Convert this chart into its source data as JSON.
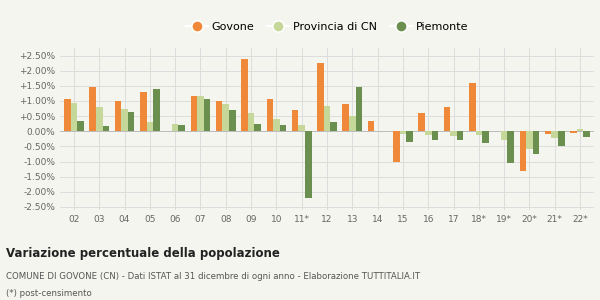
{
  "categories": [
    "02",
    "03",
    "04",
    "05",
    "06",
    "07",
    "08",
    "09",
    "10",
    "11*",
    "12",
    "13",
    "14",
    "15",
    "16",
    "17",
    "18*",
    "19*",
    "20*",
    "21*",
    "22*"
  ],
  "govone": [
    1.05,
    1.45,
    1.0,
    1.3,
    0.0,
    1.15,
    1.0,
    2.4,
    1.05,
    0.7,
    2.25,
    0.9,
    0.35,
    -1.0,
    0.6,
    0.8,
    1.6,
    0.0,
    -1.3,
    -0.1,
    -0.05
  ],
  "provincia_cn": [
    0.95,
    0.8,
    0.75,
    0.3,
    0.25,
    1.15,
    0.9,
    0.6,
    0.4,
    0.22,
    0.85,
    0.5,
    0.0,
    -0.1,
    -0.12,
    -0.15,
    -0.12,
    -0.3,
    -0.6,
    -0.22,
    0.08
  ],
  "piemonte": [
    0.35,
    0.18,
    0.65,
    1.4,
    0.22,
    1.08,
    0.7,
    0.25,
    0.2,
    -2.2,
    0.3,
    1.45,
    0.0,
    -0.35,
    -0.28,
    -0.3,
    -0.38,
    -1.05,
    -0.75,
    -0.5,
    -0.18
  ],
  "color_govone": "#f0883a",
  "color_provincia": "#c5d89a",
  "color_piemonte": "#6b8f4e",
  "title": "Variazione percentuale della popolazione",
  "subtitle": "COMUNE DI GOVONE (CN) - Dati ISTAT al 31 dicembre di ogni anno - Elaborazione TUTTITALIA.IT",
  "footnote": "(*) post-censimento",
  "legend_labels": [
    "Govone",
    "Provincia di CN",
    "Piemonte"
  ],
  "ylim": [
    -2.6,
    2.75
  ],
  "yticks": [
    -2.5,
    -2.0,
    -1.5,
    -1.0,
    -0.5,
    0.0,
    0.5,
    1.0,
    1.5,
    2.0,
    2.5
  ],
  "bg_color": "#f5f5f0",
  "grid_color": "#dddddd"
}
